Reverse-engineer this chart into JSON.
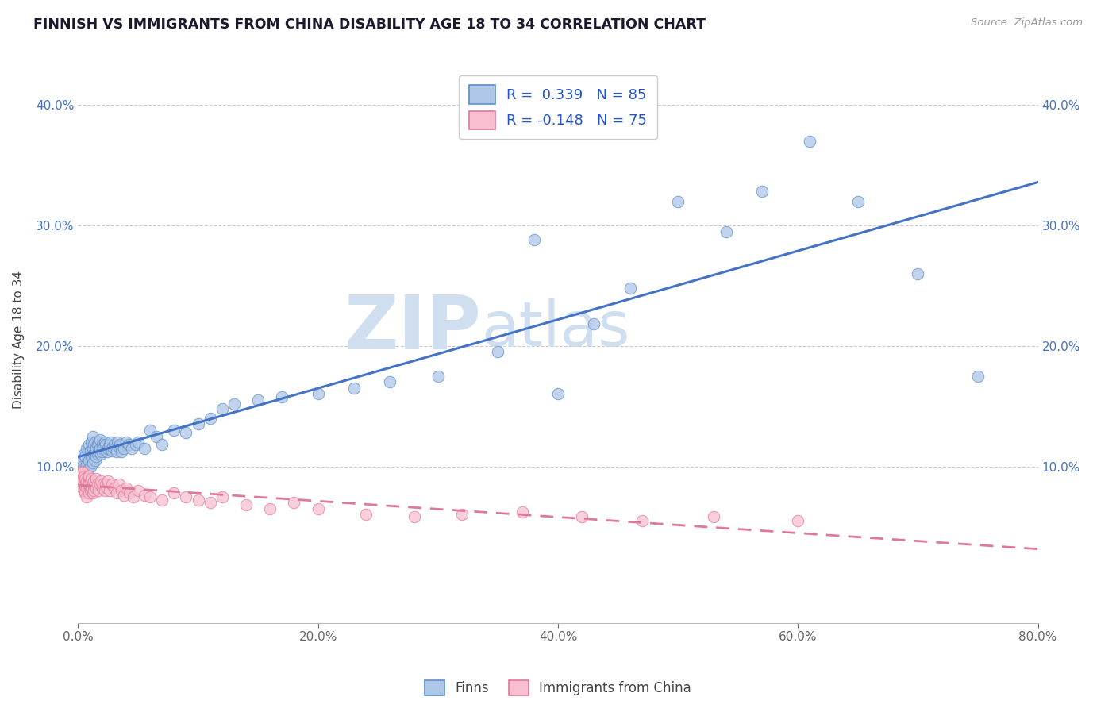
{
  "title": "FINNISH VS IMMIGRANTS FROM CHINA DISABILITY AGE 18 TO 34 CORRELATION CHART",
  "source": "Source: ZipAtlas.com",
  "ylabel": "Disability Age 18 to 34",
  "xlim": [
    0.0,
    0.8
  ],
  "ylim": [
    -0.03,
    0.44
  ],
  "xtick_labels": [
    "0.0%",
    "20.0%",
    "40.0%",
    "60.0%",
    "80.0%"
  ],
  "xtick_vals": [
    0.0,
    0.2,
    0.4,
    0.6,
    0.8
  ],
  "ytick_labels": [
    "10.0%",
    "20.0%",
    "30.0%",
    "40.0%"
  ],
  "ytick_vals": [
    0.1,
    0.2,
    0.3,
    0.4
  ],
  "legend_r1": "R =  0.339   N = 85",
  "legend_r2": "R = -0.148   N = 75",
  "finns_color": "#aec6e8",
  "finns_edge_color": "#5b8ec4",
  "immigrants_color": "#f7bfd0",
  "immigrants_edge_color": "#e07898",
  "finns_line_color": "#4472c4",
  "immigrants_line_color": "#e07898",
  "legend_label1": "Finns",
  "legend_label2": "Immigrants from China",
  "background_color": "#ffffff",
  "grid_color": "#cccccc",
  "watermark_color": "#d0dff0",
  "finns_x": [
    0.002,
    0.003,
    0.004,
    0.005,
    0.005,
    0.006,
    0.007,
    0.007,
    0.008,
    0.008,
    0.009,
    0.009,
    0.01,
    0.01,
    0.011,
    0.011,
    0.012,
    0.012,
    0.012,
    0.013,
    0.013,
    0.014,
    0.014,
    0.014,
    0.015,
    0.015,
    0.016,
    0.016,
    0.017,
    0.017,
    0.018,
    0.018,
    0.019,
    0.02,
    0.02,
    0.021,
    0.022,
    0.023,
    0.024,
    0.025,
    0.026,
    0.027,
    0.028,
    0.029,
    0.03,
    0.031,
    0.032,
    0.033,
    0.034,
    0.035,
    0.036,
    0.038,
    0.04,
    0.042,
    0.045,
    0.048,
    0.05,
    0.055,
    0.06,
    0.065,
    0.07,
    0.08,
    0.09,
    0.1,
    0.11,
    0.12,
    0.13,
    0.15,
    0.17,
    0.2,
    0.23,
    0.26,
    0.3,
    0.35,
    0.38,
    0.4,
    0.43,
    0.46,
    0.5,
    0.54,
    0.57,
    0.61,
    0.65,
    0.7,
    0.75
  ],
  "finns_y": [
    0.105,
    0.1,
    0.098,
    0.11,
    0.095,
    0.108,
    0.102,
    0.115,
    0.098,
    0.112,
    0.105,
    0.118,
    0.1,
    0.113,
    0.108,
    0.12,
    0.103,
    0.115,
    0.125,
    0.11,
    0.118,
    0.105,
    0.112,
    0.12,
    0.108,
    0.115,
    0.11,
    0.118,
    0.112,
    0.12,
    0.115,
    0.122,
    0.11,
    0.118,
    0.112,
    0.115,
    0.12,
    0.118,
    0.112,
    0.115,
    0.118,
    0.12,
    0.113,
    0.116,
    0.118,
    0.115,
    0.112,
    0.12,
    0.116,
    0.118,
    0.112,
    0.115,
    0.12,
    0.118,
    0.115,
    0.118,
    0.12,
    0.115,
    0.13,
    0.125,
    0.118,
    0.13,
    0.128,
    0.135,
    0.14,
    0.148,
    0.152,
    0.155,
    0.158,
    0.16,
    0.165,
    0.17,
    0.175,
    0.195,
    0.288,
    0.16,
    0.218,
    0.248,
    0.32,
    0.295,
    0.328,
    0.37,
    0.32,
    0.26,
    0.175
  ],
  "immigrants_x": [
    0.001,
    0.002,
    0.002,
    0.003,
    0.003,
    0.003,
    0.004,
    0.004,
    0.004,
    0.005,
    0.005,
    0.005,
    0.006,
    0.006,
    0.006,
    0.007,
    0.007,
    0.007,
    0.008,
    0.008,
    0.009,
    0.009,
    0.009,
    0.01,
    0.01,
    0.011,
    0.011,
    0.012,
    0.012,
    0.013,
    0.013,
    0.014,
    0.015,
    0.015,
    0.016,
    0.017,
    0.018,
    0.019,
    0.02,
    0.021,
    0.022,
    0.023,
    0.024,
    0.025,
    0.026,
    0.028,
    0.03,
    0.032,
    0.034,
    0.036,
    0.038,
    0.04,
    0.043,
    0.046,
    0.05,
    0.055,
    0.06,
    0.07,
    0.08,
    0.09,
    0.1,
    0.11,
    0.12,
    0.14,
    0.16,
    0.18,
    0.2,
    0.24,
    0.28,
    0.32,
    0.37,
    0.42,
    0.47,
    0.53,
    0.6
  ],
  "immigrants_y": [
    0.095,
    0.088,
    0.092,
    0.085,
    0.09,
    0.096,
    0.082,
    0.088,
    0.095,
    0.08,
    0.085,
    0.092,
    0.078,
    0.084,
    0.09,
    0.082,
    0.088,
    0.075,
    0.085,
    0.092,
    0.078,
    0.085,
    0.092,
    0.08,
    0.088,
    0.082,
    0.09,
    0.078,
    0.085,
    0.08,
    0.088,
    0.085,
    0.082,
    0.09,
    0.085,
    0.08,
    0.085,
    0.088,
    0.082,
    0.085,
    0.08,
    0.085,
    0.082,
    0.088,
    0.08,
    0.085,
    0.082,
    0.078,
    0.085,
    0.08,
    0.076,
    0.082,
    0.078,
    0.075,
    0.08,
    0.076,
    0.075,
    0.072,
    0.078,
    0.075,
    0.072,
    0.07,
    0.075,
    0.068,
    0.065,
    0.07,
    0.065,
    0.06,
    0.058,
    0.06,
    0.062,
    0.058,
    0.055,
    0.058,
    0.055
  ]
}
